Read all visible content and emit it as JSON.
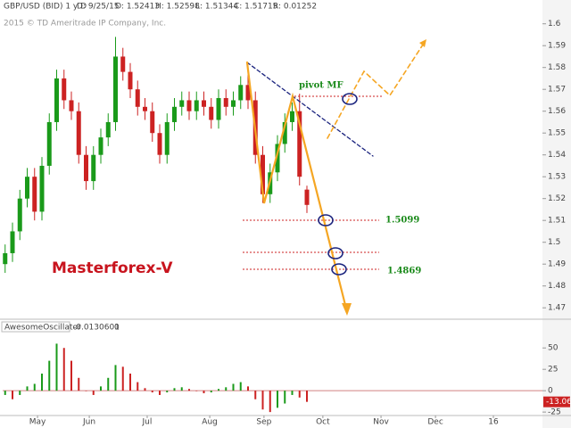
{
  "header": {
    "symbol": "GBP/USD (BID) 1 y D",
    "date": "D: 9/25/15",
    "open": "O: 1.52413",
    "high": "H: 1.52598",
    "low": "L: 1.51344",
    "close": "C: 1.51715",
    "range": "R: 0.01252",
    "copyright": "2015 © TD Ameritrade IP Company, Inc.",
    "brand": "Masterforex-V"
  },
  "chart_data": [
    {
      "type": "candlestick",
      "x": [
        1,
        4,
        7,
        10,
        13,
        16,
        19,
        22,
        25,
        28,
        31,
        34,
        37,
        40,
        43,
        46,
        49,
        52,
        55,
        58,
        61,
        64,
        67,
        70,
        73,
        76,
        79,
        82,
        85,
        88,
        91,
        94,
        97,
        100,
        103,
        106,
        109,
        112,
        115,
        118,
        121,
        124
      ],
      "open": [
        1.49,
        1.495,
        1.505,
        1.52,
        1.53,
        1.514,
        1.535,
        1.555,
        1.575,
        1.565,
        1.56,
        1.54,
        1.528,
        1.54,
        1.548,
        1.555,
        1.585,
        1.578,
        1.57,
        1.562,
        1.56,
        1.55,
        1.54,
        1.555,
        1.562,
        1.565,
        1.56,
        1.565,
        1.562,
        1.556,
        1.566,
        1.562,
        1.565,
        1.572,
        1.565,
        1.54,
        1.522,
        1.532,
        1.545,
        1.555,
        1.56,
        1.5241
      ],
      "high": [
        1.499,
        1.509,
        1.524,
        1.534,
        1.534,
        1.539,
        1.559,
        1.579,
        1.579,
        1.569,
        1.564,
        1.544,
        1.544,
        1.552,
        1.559,
        1.594,
        1.589,
        1.582,
        1.574,
        1.566,
        1.564,
        1.554,
        1.559,
        1.566,
        1.569,
        1.569,
        1.569,
        1.569,
        1.566,
        1.57,
        1.57,
        1.569,
        1.576,
        1.582,
        1.569,
        1.544,
        1.536,
        1.549,
        1.559,
        1.564,
        1.568,
        1.5259
      ],
      "low": [
        1.486,
        1.491,
        1.501,
        1.516,
        1.51,
        1.51,
        1.531,
        1.551,
        1.561,
        1.556,
        1.536,
        1.524,
        1.524,
        1.536,
        1.544,
        1.551,
        1.574,
        1.566,
        1.558,
        1.556,
        1.546,
        1.536,
        1.536,
        1.551,
        1.558,
        1.556,
        1.556,
        1.558,
        1.552,
        1.552,
        1.558,
        1.558,
        1.561,
        1.561,
        1.536,
        1.518,
        1.518,
        1.528,
        1.541,
        1.551,
        1.526,
        1.5134
      ],
      "close": [
        1.495,
        1.505,
        1.52,
        1.53,
        1.514,
        1.535,
        1.555,
        1.575,
        1.565,
        1.56,
        1.54,
        1.528,
        1.54,
        1.548,
        1.555,
        1.585,
        1.578,
        1.57,
        1.562,
        1.56,
        1.55,
        1.54,
        1.555,
        1.562,
        1.565,
        1.56,
        1.565,
        1.562,
        1.556,
        1.566,
        1.562,
        1.565,
        1.572,
        1.565,
        1.54,
        1.522,
        1.532,
        1.545,
        1.555,
        1.56,
        1.53,
        1.5171
      ],
      "up_color": "#1a9a1a",
      "down_color": "#cc2222",
      "xlim": [
        0,
        220
      ],
      "xticks": [
        {
          "value": 14.2,
          "label": "May"
        },
        {
          "value": 35.3,
          "label": "Jun"
        },
        {
          "value": 58.9,
          "label": "Jul"
        },
        {
          "value": 84.4,
          "label": "Aug"
        },
        {
          "value": 106.5,
          "label": "Sep"
        },
        {
          "value": 130.5,
          "label": "Oct"
        },
        {
          "value": 154.2,
          "label": "Nov"
        },
        {
          "value": 176.4,
          "label": "Dec"
        },
        {
          "value": 200,
          "label": "16"
        }
      ],
      "ylim": [
        1.466,
        1.606
      ],
      "yticks": [
        1.6,
        1.59,
        1.58,
        1.57,
        1.56,
        1.55,
        1.54,
        1.53,
        1.52,
        1.51,
        1.5,
        1.49,
        1.48,
        1.47
      ],
      "annotations": [
        "pivot MF",
        "1.5099",
        "1.4869"
      ]
    },
    {
      "type": "bar",
      "name": "AwesomeOscillator",
      "reading": "-0.0130601",
      "zero": "0",
      "x": [
        1,
        4,
        7,
        10,
        13,
        16,
        19,
        22,
        25,
        28,
        31,
        34,
        37,
        40,
        43,
        46,
        49,
        52,
        55,
        58,
        61,
        64,
        67,
        70,
        73,
        76,
        79,
        82,
        85,
        88,
        91,
        94,
        97,
        100,
        103,
        106,
        109,
        112,
        115,
        118,
        121,
        124
      ],
      "values": [
        -5,
        -10,
        -5,
        5,
        8,
        20,
        35,
        55,
        50,
        35,
        15,
        0,
        -5,
        5,
        15,
        30,
        28,
        20,
        10,
        3,
        -2,
        -5,
        -2,
        3,
        4,
        2,
        0,
        -3,
        -2,
        2,
        4,
        8,
        10,
        5,
        -10,
        -22,
        -25,
        -20,
        -15,
        -5,
        -8,
        -13.06
      ],
      "value_labels": [
        "-13.06"
      ],
      "up_color": "#1a9a1a",
      "down_color": "#cc2222",
      "ylim": [
        -28,
        69
      ],
      "yticks": [
        50,
        25,
        0,
        -25
      ]
    }
  ]
}
